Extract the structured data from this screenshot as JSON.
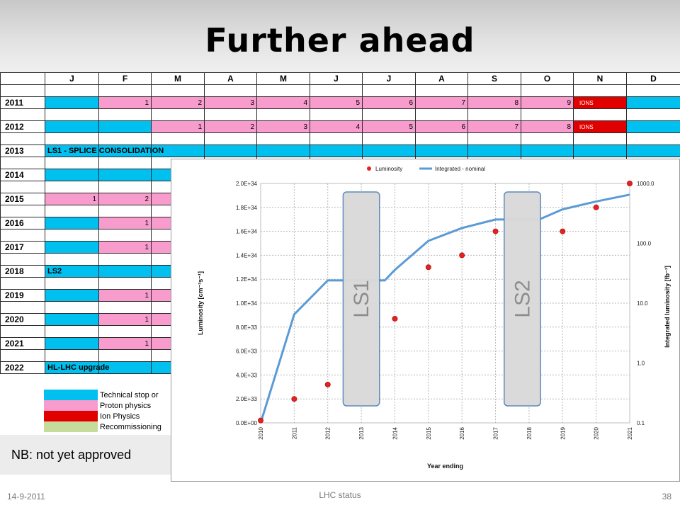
{
  "slide": {
    "title": "Further ahead",
    "nb_note": "NB: not yet approved",
    "footer_date": "14-9-2011",
    "footer_center": "LHC status",
    "page_number": "38"
  },
  "schedule": {
    "months": [
      "J",
      "F",
      "M",
      "A",
      "M",
      "J",
      "J",
      "A",
      "S",
      "O",
      "N",
      "D"
    ],
    "colors": {
      "tech": "#00c0f0",
      "proton": "#f79ccc",
      "ion": "#e00000",
      "recommissioning": "#c5dc9a"
    },
    "rows": [
      {
        "kind": "blank"
      },
      {
        "kind": "year",
        "year": "2011",
        "cells": [
          {
            "t": "tech"
          },
          {
            "t": "proton",
            "v": "1"
          },
          {
            "t": "proton",
            "v": "2"
          },
          {
            "t": "proton",
            "v": "3"
          },
          {
            "t": "proton",
            "v": "4"
          },
          {
            "t": "proton",
            "v": "5"
          },
          {
            "t": "proton",
            "v": "6"
          },
          {
            "t": "proton",
            "v": "7"
          },
          {
            "t": "proton",
            "v": "8"
          },
          {
            "t": "proton",
            "v": "9"
          },
          {
            "t": "ion",
            "v": "IONS"
          },
          {
            "t": "tech"
          }
        ]
      },
      {
        "kind": "blank"
      },
      {
        "kind": "year",
        "year": "2012",
        "cells": [
          {
            "t": "tech"
          },
          {
            "t": "tech"
          },
          {
            "t": "proton",
            "v": "1"
          },
          {
            "t": "proton",
            "v": "2"
          },
          {
            "t": "proton",
            "v": "3"
          },
          {
            "t": "proton",
            "v": "4"
          },
          {
            "t": "proton",
            "v": "5"
          },
          {
            "t": "proton",
            "v": "6"
          },
          {
            "t": "proton",
            "v": "7"
          },
          {
            "t": "proton",
            "v": "8"
          },
          {
            "t": "ion",
            "v": "IONS"
          },
          {
            "t": "tech"
          }
        ]
      },
      {
        "kind": "blank"
      },
      {
        "kind": "year",
        "year": "2013",
        "span_label": "LS1 - SPLICE CONSOLIDATION",
        "cells": [
          {
            "t": "tech"
          },
          {
            "t": "tech"
          },
          {
            "t": "tech"
          },
          {
            "t": "tech"
          },
          {
            "t": "tech"
          },
          {
            "t": "tech"
          },
          {
            "t": "tech"
          },
          {
            "t": "tech"
          },
          {
            "t": "tech"
          },
          {
            "t": "tech"
          },
          {
            "t": "tech"
          },
          {
            "t": "tech"
          }
        ]
      },
      {
        "kind": "blank"
      },
      {
        "kind": "year",
        "year": "2014",
        "cells": [
          {
            "t": "tech"
          },
          {
            "t": "tech"
          },
          {
            "t": "tech"
          }
        ]
      },
      {
        "kind": "blank"
      },
      {
        "kind": "year",
        "year": "2015",
        "cells": [
          {
            "t": "proton",
            "v": "1"
          },
          {
            "t": "proton",
            "v": "2"
          },
          {
            "t": "proton"
          }
        ]
      },
      {
        "kind": "blank"
      },
      {
        "kind": "year",
        "year": "2016",
        "cells": [
          {
            "t": "tech"
          },
          {
            "t": "proton",
            "v": "1"
          },
          {
            "t": "proton"
          }
        ]
      },
      {
        "kind": "blank"
      },
      {
        "kind": "year",
        "year": "2017",
        "cells": [
          {
            "t": "tech"
          },
          {
            "t": "proton",
            "v": "1"
          },
          {
            "t": "proton"
          }
        ]
      },
      {
        "kind": "blank"
      },
      {
        "kind": "year",
        "year": "2018",
        "span_label": "LS2",
        "cells": [
          {
            "t": "tech"
          },
          {
            "t": "tech"
          },
          {
            "t": "tech"
          }
        ]
      },
      {
        "kind": "blank"
      },
      {
        "kind": "year",
        "year": "2019",
        "cells": [
          {
            "t": "tech"
          },
          {
            "t": "proton",
            "v": "1"
          },
          {
            "t": "proton"
          }
        ]
      },
      {
        "kind": "blank"
      },
      {
        "kind": "year",
        "year": "2020",
        "cells": [
          {
            "t": "tech"
          },
          {
            "t": "proton",
            "v": "1"
          },
          {
            "t": "proton"
          }
        ]
      },
      {
        "kind": "blank"
      },
      {
        "kind": "year",
        "year": "2021",
        "cells": [
          {
            "t": "tech"
          },
          {
            "t": "proton",
            "v": "1"
          },
          {
            "t": "proton"
          }
        ]
      },
      {
        "kind": "blank"
      },
      {
        "kind": "year",
        "year": "2022",
        "span_label": "HL-LHC upgrade",
        "cells": [
          {
            "t": "tech"
          },
          {
            "t": "tech"
          },
          {
            "t": "tech"
          }
        ]
      }
    ],
    "legend": [
      {
        "color": "tech",
        "label": "Technical stop or"
      },
      {
        "color": "proton",
        "label": "Proton physics"
      },
      {
        "color": "ion",
        "label": "Ion Physics"
      },
      {
        "color": "recommissioning",
        "label": "Recommissioning"
      }
    ]
  },
  "chart_data": {
    "type": "line",
    "xlabel": "Year ending",
    "ylabel": "Luminosity [cm⁻²s⁻¹]",
    "y2label": "Integrated luminosity [fb⁻¹]",
    "x": [
      "2010",
      "2011",
      "2012",
      "2013",
      "2014",
      "2015",
      "2016",
      "2017",
      "2018",
      "2019",
      "2020",
      "2021"
    ],
    "ylim": [
      0,
      2e+34
    ],
    "y_ticks": [
      "0.0E+00",
      "2.0E+33",
      "4.0E+33",
      "6.0E+33",
      "8.0E+33",
      "1.0E+34",
      "1.2E+34",
      "1.4E+34",
      "1.6E+34",
      "1.8E+34",
      "2.0E+34"
    ],
    "y2_scale": "log",
    "y2lim": [
      0.1,
      1000
    ],
    "y2_ticks": [
      "0.1",
      "1.0",
      "10.0",
      "100.0",
      "1000.0"
    ],
    "grid": true,
    "legend_position": "top",
    "series": [
      {
        "name": "Luminosity",
        "style": "markers",
        "color": "#e32222",
        "axis": "left",
        "values": [
          2e+32,
          2e+33,
          3.2e+33,
          null,
          8.7e+33,
          1.3e+34,
          1.4e+34,
          1.6e+34,
          null,
          1.6e+34,
          1.8e+34,
          2e+34
        ]
      },
      {
        "name": "Integrated - nominal",
        "style": "line",
        "color": "#5b9bd5",
        "axis": "right",
        "points": [
          [
            "2010",
            0.1
          ],
          [
            "2011",
            6.5
          ],
          [
            "2012",
            24
          ],
          [
            "2013",
            24
          ],
          [
            "2013.7",
            24
          ],
          [
            "2014",
            36
          ],
          [
            "2015",
            110
          ],
          [
            "2016",
            180
          ],
          [
            "2017",
            250
          ],
          [
            "2018",
            250
          ],
          [
            "2018.3",
            250
          ],
          [
            "2019",
            370
          ],
          [
            "2020",
            500
          ],
          [
            "2021",
            650
          ]
        ]
      }
    ],
    "shutdowns": [
      {
        "label": "LS1",
        "from": "2012.5",
        "to": "2013.5"
      },
      {
        "label": "LS2",
        "from": "2017.3",
        "to": "2018.3"
      }
    ]
  }
}
